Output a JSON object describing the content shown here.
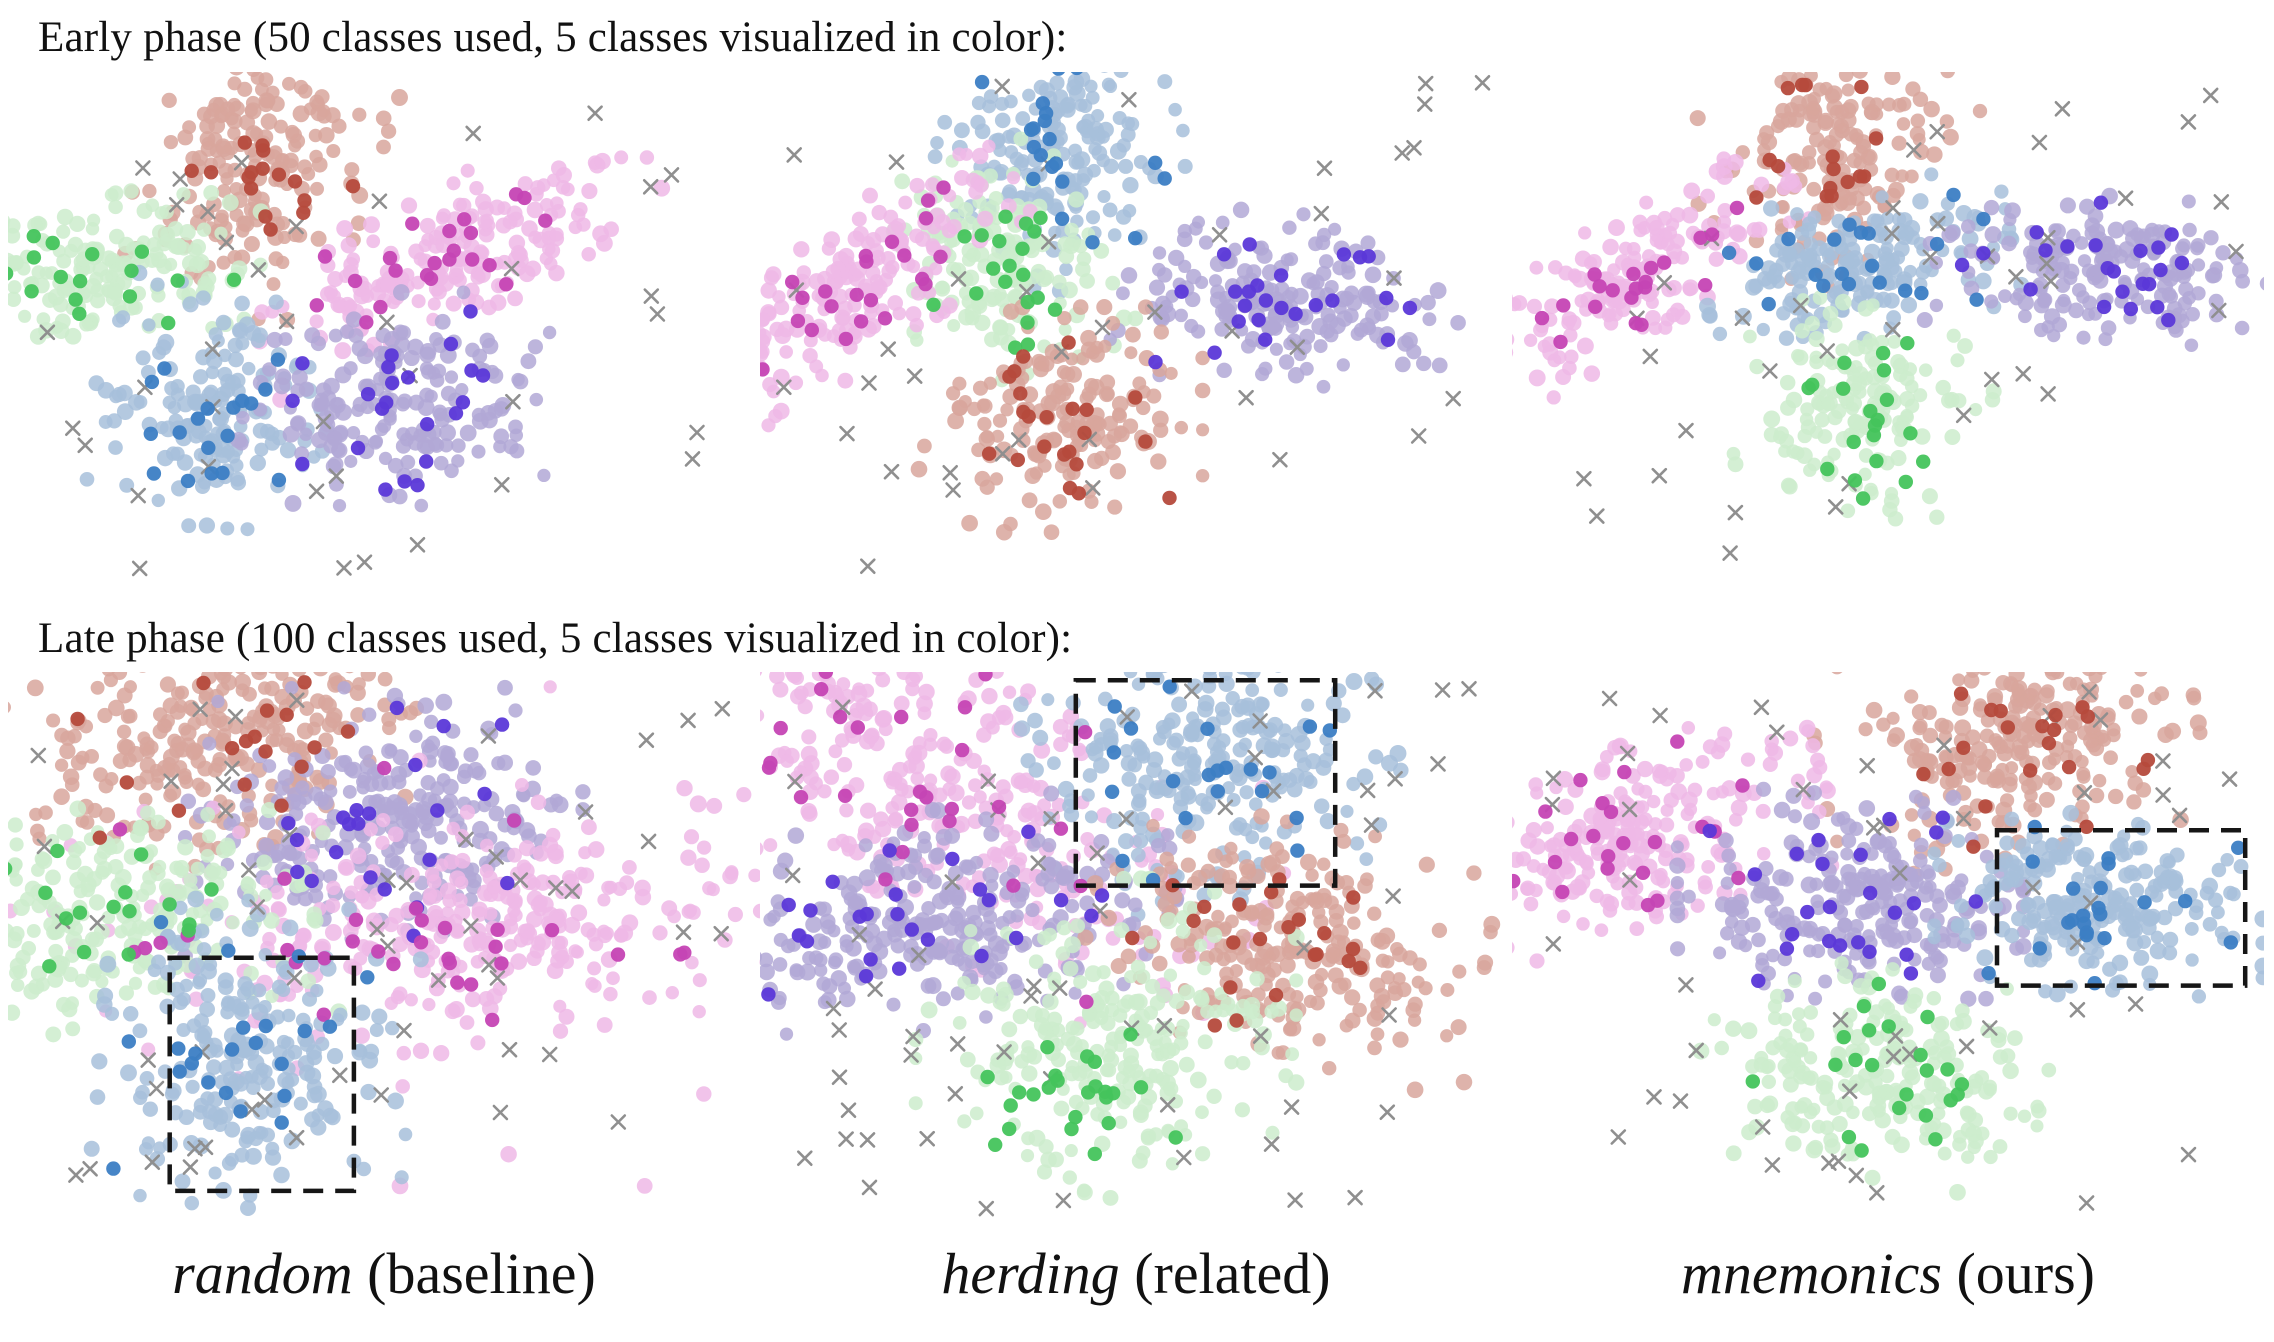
{
  "titles": {
    "early": "Early phase (50 classes used, 5 classes visualized in color):",
    "late": "Late phase (100 classes used, 5 classes visualized in color):"
  },
  "captions": [
    {
      "method": "random",
      "role": " (baseline)"
    },
    {
      "method": "herding",
      "role": " (related)"
    },
    {
      "method": "mnemonics",
      "role": " (ours)"
    }
  ],
  "colors": {
    "red": {
      "bg": "#d8a69c",
      "fg": "#b54a3c"
    },
    "magenta": {
      "bg": "#efb9e6",
      "fg": "#c544b4"
    },
    "green": {
      "bg": "#cdeccd",
      "fg": "#44c45c"
    },
    "blue": {
      "bg": "#a7bfda",
      "fg": "#3c7ec4"
    },
    "purple": {
      "bg": "#b2a8d6",
      "fg": "#5b38d8"
    },
    "cross": "#8f8f8f",
    "highlight_box": "#161616"
  },
  "chart_data": [
    {
      "type": "scatter",
      "phase": "early",
      "method": "random",
      "description": "t-SNE embedding, 5 colored classes of 50; light dots = class data, dark dots = exemplars, gray crosses = other classes",
      "crosses": 38,
      "clusters": [
        {
          "class": "red",
          "cx": 0.33,
          "cy": 0.2,
          "rx": 0.065,
          "ry": 0.115,
          "angle": 18,
          "bg": 180,
          "fg": 16
        },
        {
          "class": "green",
          "cx": 0.115,
          "cy": 0.385,
          "rx": 0.1,
          "ry": 0.062,
          "angle": -8,
          "bg": 170,
          "fg": 18
        },
        {
          "class": "magenta",
          "cx": 0.595,
          "cy": 0.355,
          "rx": 0.125,
          "ry": 0.062,
          "angle": -22,
          "bg": 190,
          "fg": 22
        },
        {
          "class": "blue",
          "cx": 0.27,
          "cy": 0.655,
          "rx": 0.068,
          "ry": 0.1,
          "angle": 12,
          "bg": 160,
          "fg": 18
        },
        {
          "class": "purple",
          "cx": 0.525,
          "cy": 0.635,
          "rx": 0.095,
          "ry": 0.09,
          "angle": 0,
          "bg": 180,
          "fg": 22
        }
      ]
    },
    {
      "type": "scatter",
      "phase": "early",
      "method": "herding",
      "description": "t-SNE embedding, 5 colored classes of 50",
      "crosses": 40,
      "clusters": [
        {
          "class": "blue",
          "cx": 0.4,
          "cy": 0.165,
          "rx": 0.072,
          "ry": 0.112,
          "angle": 8,
          "bg": 170,
          "fg": 20
        },
        {
          "class": "green",
          "cx": 0.325,
          "cy": 0.37,
          "rx": 0.062,
          "ry": 0.095,
          "angle": -18,
          "bg": 150,
          "fg": 20
        },
        {
          "class": "magenta",
          "cx": 0.115,
          "cy": 0.445,
          "rx": 0.12,
          "ry": 0.058,
          "angle": -38,
          "bg": 180,
          "fg": 24
        },
        {
          "class": "purple",
          "cx": 0.7,
          "cy": 0.44,
          "rx": 0.1,
          "ry": 0.072,
          "angle": 4,
          "bg": 180,
          "fg": 24
        },
        {
          "class": "red",
          "cx": 0.4,
          "cy": 0.675,
          "rx": 0.082,
          "ry": 0.095,
          "angle": 0,
          "bg": 170,
          "fg": 22
        }
      ]
    },
    {
      "type": "scatter",
      "phase": "early",
      "method": "mnemonics",
      "description": "t-SNE embedding, 5 colored classes of 50",
      "crosses": 40,
      "clusters": [
        {
          "class": "red",
          "cx": 0.43,
          "cy": 0.155,
          "rx": 0.082,
          "ry": 0.09,
          "angle": -35,
          "bg": 170,
          "fg": 18
        },
        {
          "class": "magenta",
          "cx": 0.155,
          "cy": 0.4,
          "rx": 0.11,
          "ry": 0.052,
          "angle": -32,
          "bg": 170,
          "fg": 20
        },
        {
          "class": "blue",
          "cx": 0.46,
          "cy": 0.375,
          "rx": 0.09,
          "ry": 0.062,
          "angle": -12,
          "bg": 170,
          "fg": 20
        },
        {
          "class": "purple",
          "cx": 0.78,
          "cy": 0.375,
          "rx": 0.098,
          "ry": 0.062,
          "angle": 4,
          "bg": 180,
          "fg": 22
        },
        {
          "class": "green",
          "cx": 0.47,
          "cy": 0.655,
          "rx": 0.072,
          "ry": 0.088,
          "angle": 8,
          "bg": 160,
          "fg": 20
        }
      ]
    },
    {
      "type": "scatter",
      "phase": "late",
      "method": "random",
      "description": "t-SNE embedding after 100 classes; clusters overlap heavily; dashed box marks drifting blue class",
      "crosses": 55,
      "highlight_box": {
        "x": 0.215,
        "y": 0.515,
        "w": 0.245,
        "h": 0.42
      },
      "clusters": [
        {
          "class": "red",
          "cx": 0.28,
          "cy": 0.12,
          "rx": 0.115,
          "ry": 0.092,
          "angle": -15,
          "bg": 260,
          "fg": 18
        },
        {
          "class": "purple",
          "cx": 0.5,
          "cy": 0.27,
          "rx": 0.115,
          "ry": 0.105,
          "angle": 0,
          "bg": 260,
          "fg": 22
        },
        {
          "class": "magenta",
          "cx": 0.62,
          "cy": 0.46,
          "rx": 0.165,
          "ry": 0.09,
          "angle": -8,
          "bg": 280,
          "fg": 22
        },
        {
          "class": "magenta",
          "cx": 0.42,
          "cy": 0.42,
          "rx": 0.28,
          "ry": 0.22,
          "angle": 0,
          "bg": 50,
          "fg": 10
        },
        {
          "class": "green",
          "cx": 0.14,
          "cy": 0.44,
          "rx": 0.125,
          "ry": 0.09,
          "angle": -5,
          "bg": 240,
          "fg": 20
        },
        {
          "class": "blue",
          "cx": 0.33,
          "cy": 0.69,
          "rx": 0.09,
          "ry": 0.12,
          "angle": 5,
          "bg": 220,
          "fg": 22
        }
      ]
    },
    {
      "type": "scatter",
      "phase": "late",
      "method": "herding",
      "description": "t-SNE embedding after 100 classes; magenta spreads diagonally; dashed box marks blue class top right",
      "crosses": 60,
      "highlight_box": {
        "x": 0.42,
        "y": 0.015,
        "w": 0.345,
        "h": 0.37
      },
      "clusters": [
        {
          "class": "magenta",
          "cx": 0.24,
          "cy": 0.2,
          "rx": 0.2,
          "ry": 0.115,
          "angle": 28,
          "bg": 320,
          "fg": 30
        },
        {
          "class": "blue",
          "cx": 0.6,
          "cy": 0.17,
          "rx": 0.12,
          "ry": 0.11,
          "angle": -10,
          "bg": 260,
          "fg": 22
        },
        {
          "class": "purple",
          "cx": 0.21,
          "cy": 0.45,
          "rx": 0.15,
          "ry": 0.085,
          "angle": -8,
          "bg": 280,
          "fg": 26
        },
        {
          "class": "red",
          "cx": 0.7,
          "cy": 0.49,
          "rx": 0.115,
          "ry": 0.095,
          "angle": 10,
          "bg": 240,
          "fg": 22
        },
        {
          "class": "green",
          "cx": 0.46,
          "cy": 0.66,
          "rx": 0.11,
          "ry": 0.125,
          "angle": 0,
          "bg": 240,
          "fg": 0
        },
        {
          "class": "green",
          "cx": 0.44,
          "cy": 0.78,
          "rx": 0.075,
          "ry": 0.065,
          "angle": 0,
          "bg": 0,
          "fg": 24
        }
      ]
    },
    {
      "type": "scatter",
      "phase": "late",
      "method": "mnemonics",
      "description": "t-SNE embedding after 100 classes; clusters stay separated; dashed box marks compact blue class",
      "crosses": 50,
      "highlight_box": {
        "x": 0.645,
        "y": 0.285,
        "w": 0.33,
        "h": 0.28
      },
      "clusters": [
        {
          "class": "red",
          "cx": 0.66,
          "cy": 0.125,
          "rx": 0.11,
          "ry": 0.09,
          "angle": -10,
          "bg": 240,
          "fg": 20
        },
        {
          "class": "magenta",
          "cx": 0.15,
          "cy": 0.3,
          "rx": 0.12,
          "ry": 0.07,
          "angle": -18,
          "bg": 240,
          "fg": 22
        },
        {
          "class": "purple",
          "cx": 0.45,
          "cy": 0.4,
          "rx": 0.1,
          "ry": 0.082,
          "angle": 0,
          "bg": 240,
          "fg": 24
        },
        {
          "class": "blue",
          "cx": 0.78,
          "cy": 0.42,
          "rx": 0.095,
          "ry": 0.072,
          "angle": 0,
          "bg": 220,
          "fg": 22
        },
        {
          "class": "green",
          "cx": 0.48,
          "cy": 0.72,
          "rx": 0.1,
          "ry": 0.082,
          "angle": 10,
          "bg": 220,
          "fg": 22
        }
      ]
    }
  ]
}
